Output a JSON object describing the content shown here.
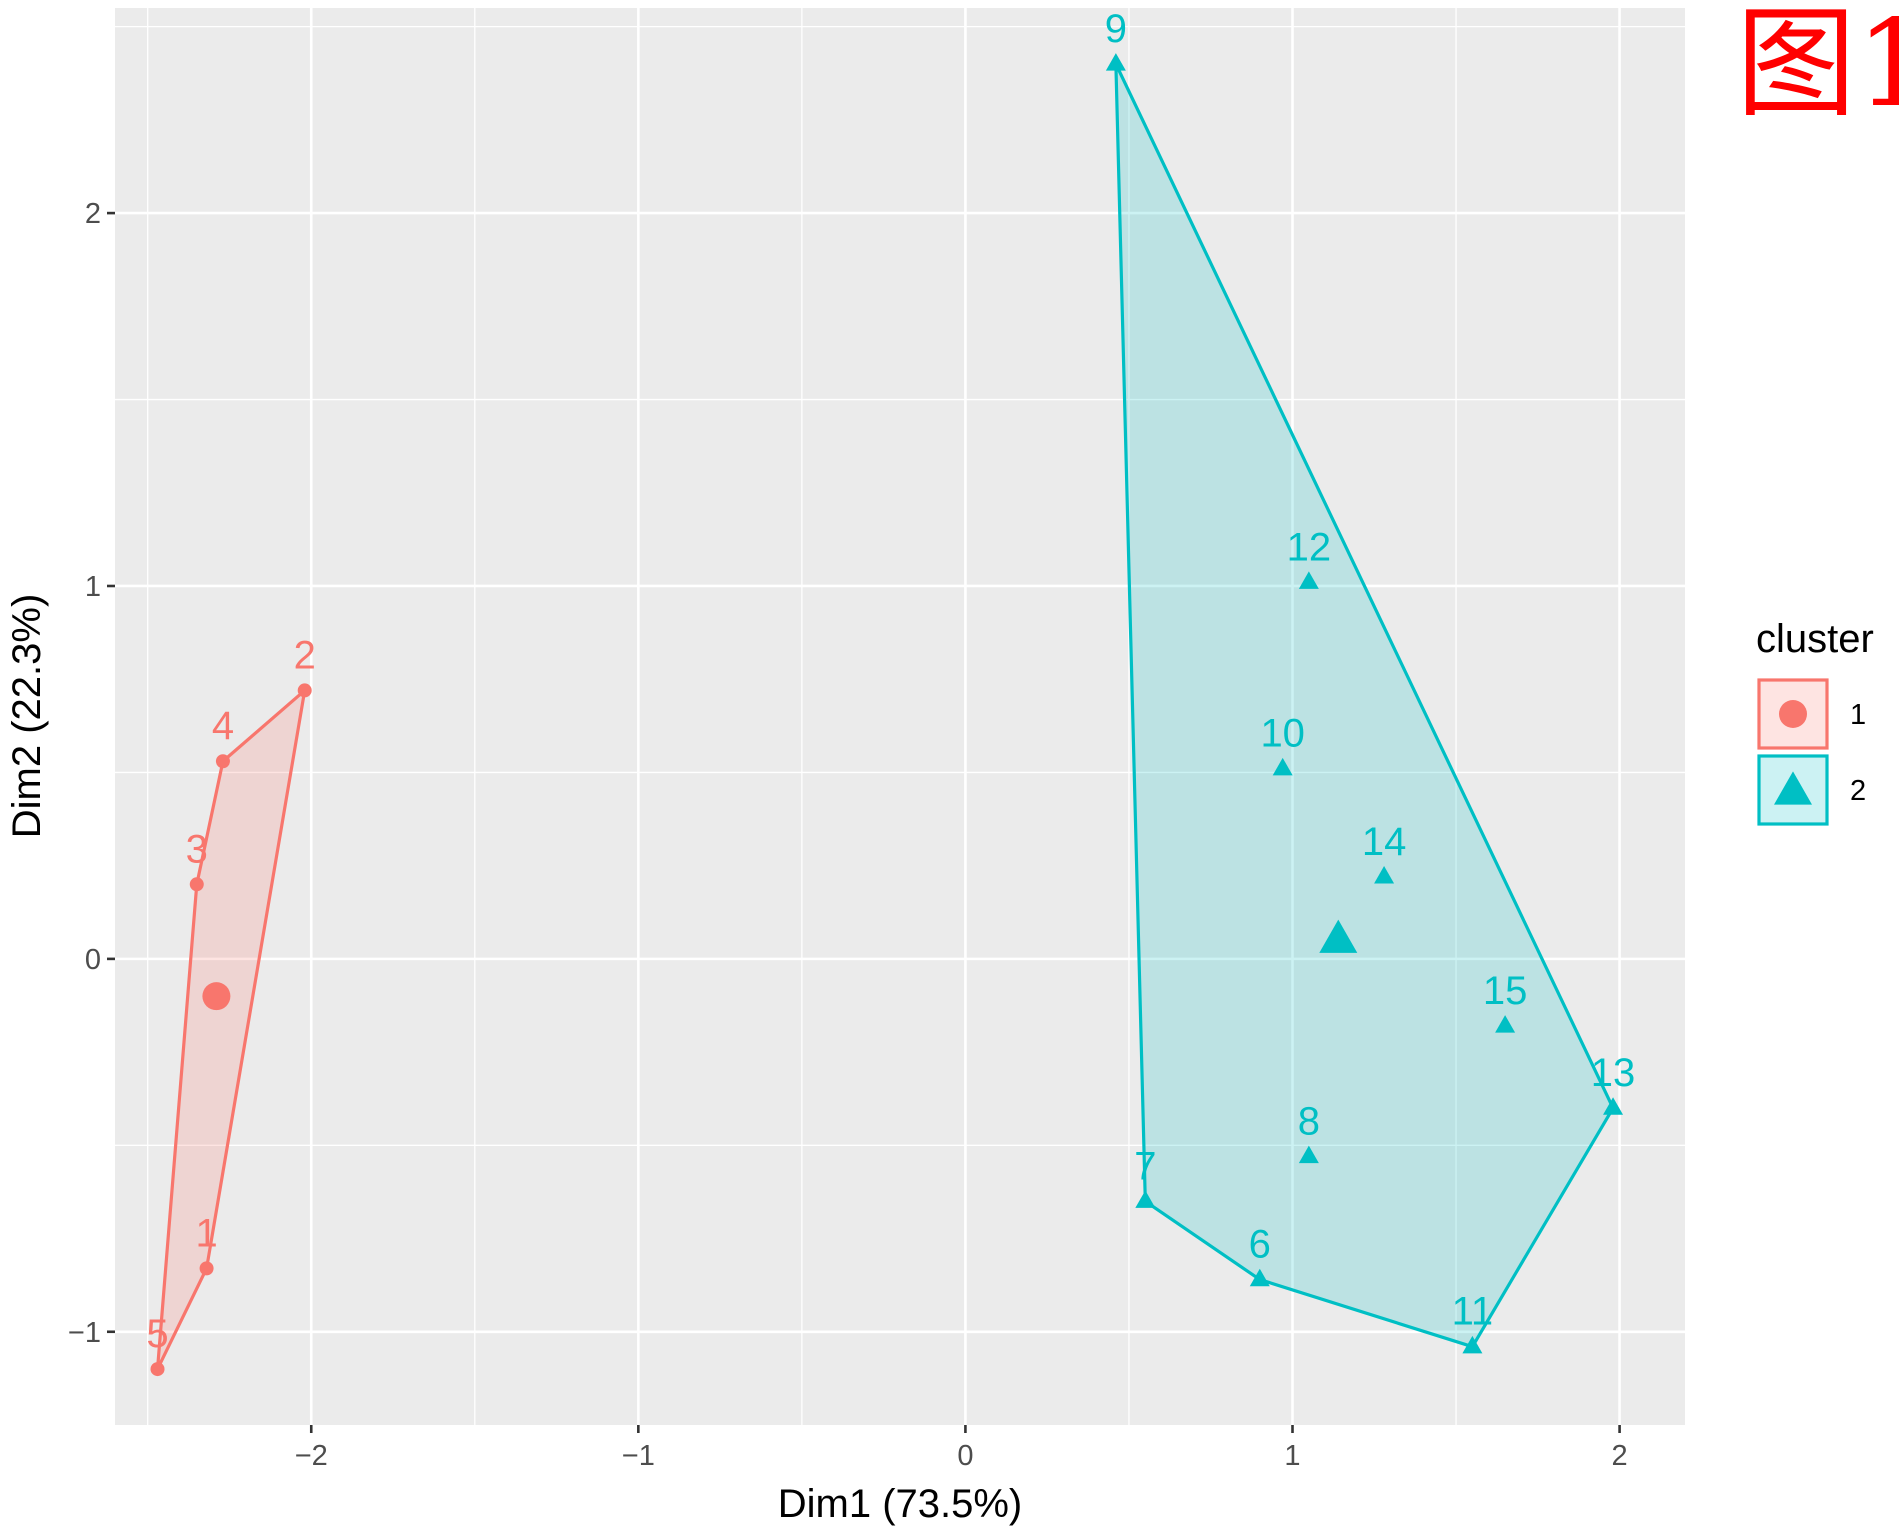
{
  "corner_label": "图1",
  "chart_data": {
    "type": "scatter",
    "xlabel": "Dim1 (73.5%)",
    "ylabel": "Dim2 (22.3%)",
    "xlim": [
      -2.6,
      2.2
    ],
    "ylim": [
      -1.25,
      2.55
    ],
    "x_ticks": [
      -2,
      -1,
      0,
      1,
      2
    ],
    "y_ticks": [
      -1,
      0,
      1,
      2
    ],
    "x_tick_labels": [
      "−2",
      "−1",
      "0",
      "1",
      "2"
    ],
    "y_tick_labels": [
      "−1",
      "0",
      "1",
      "2"
    ],
    "grid": true,
    "legend_position": "right",
    "legend_title": "cluster",
    "clusters": [
      {
        "name": "1",
        "color": "#F8766D",
        "fill": "rgba(248,118,109,0.2)",
        "shape": "circle",
        "points": [
          {
            "label": "1",
            "x": -2.32,
            "y": -0.83
          },
          {
            "label": "2",
            "x": -2.02,
            "y": 0.72
          },
          {
            "label": "3",
            "x": -2.35,
            "y": 0.2
          },
          {
            "label": "4",
            "x": -2.27,
            "y": 0.53
          },
          {
            "label": "5",
            "x": -2.47,
            "y": -1.1
          }
        ],
        "hull": [
          "5",
          "1",
          "2",
          "4",
          "3"
        ],
        "center": {
          "x": -2.29,
          "y": -0.1
        }
      },
      {
        "name": "2",
        "color": "#00BFC4",
        "fill": "rgba(0,191,196,0.2)",
        "shape": "triangle",
        "points": [
          {
            "label": "6",
            "x": 0.9,
            "y": -0.86
          },
          {
            "label": "7",
            "x": 0.55,
            "y": -0.65
          },
          {
            "label": "8",
            "x": 1.05,
            "y": -0.53
          },
          {
            "label": "9",
            "x": 0.46,
            "y": 2.4
          },
          {
            "label": "10",
            "x": 0.97,
            "y": 0.51
          },
          {
            "label": "11",
            "x": 1.55,
            "y": -1.04
          },
          {
            "label": "12",
            "x": 1.05,
            "y": 1.01
          },
          {
            "label": "13",
            "x": 1.98,
            "y": -0.4
          },
          {
            "label": "14",
            "x": 1.28,
            "y": 0.22
          },
          {
            "label": "15",
            "x": 1.65,
            "y": -0.18
          }
        ],
        "hull": [
          "9",
          "13",
          "11",
          "6",
          "7"
        ],
        "center": {
          "x": 1.14,
          "y": 0.05
        }
      }
    ]
  }
}
